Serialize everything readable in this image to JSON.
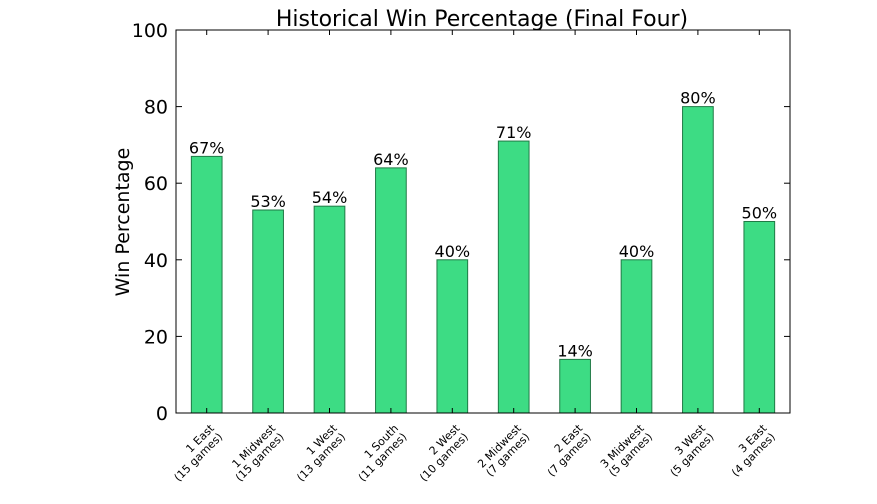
{
  "chart_data": {
    "type": "bar",
    "title": "Historical Win Percentage (Final Four)",
    "xlabel": "",
    "ylabel": "Win Percentage",
    "ylim": [
      0,
      100
    ],
    "yticks": [
      0,
      20,
      40,
      60,
      80,
      100
    ],
    "grid": false,
    "bar_color": "#3ddc84",
    "bar_edge_color": "#1f7a45",
    "categories": [
      [
        "1 East",
        "(15 games)"
      ],
      [
        "1 Midwest",
        "(15 games)"
      ],
      [
        "1 West",
        "(13 games)"
      ],
      [
        "1 South",
        "(11 games)"
      ],
      [
        "2 West",
        "(10 games)"
      ],
      [
        "2 Midwest",
        "(7 games)"
      ],
      [
        "2 East",
        "(7 games)"
      ],
      [
        "3 Midwest",
        "(5 games)"
      ],
      [
        "3 West",
        "(5 games)"
      ],
      [
        "3 East",
        "(4 games)"
      ]
    ],
    "values": [
      67,
      53,
      54,
      64,
      40,
      71,
      14,
      40,
      80,
      50
    ],
    "data_labels": [
      "67%",
      "53%",
      "54%",
      "64%",
      "40%",
      "71%",
      "14%",
      "40%",
      "80%",
      "50%"
    ]
  }
}
